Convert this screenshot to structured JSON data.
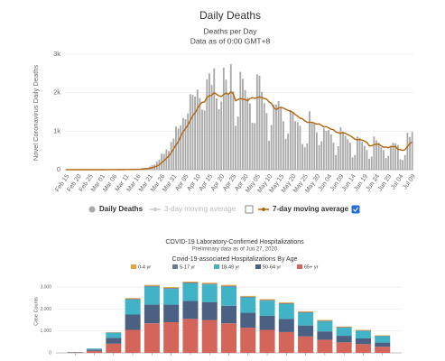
{
  "chart_data": [
    {
      "type": "bar",
      "title": "Daily Deaths",
      "subtitle": [
        "Deaths per Day",
        "Data as of 0:00 GMT+8"
      ],
      "y_label": "Novel Coronavirus Daily Deaths",
      "categories": [
        "Feb 15",
        null,
        null,
        null,
        null,
        "Feb 20",
        null,
        null,
        null,
        null,
        "Feb 25",
        null,
        null,
        null,
        null,
        "Mar 01",
        null,
        null,
        null,
        null,
        "Mar 06",
        null,
        null,
        null,
        null,
        "Mar 11",
        null,
        null,
        null,
        null,
        "Mar 16",
        null,
        null,
        null,
        null,
        "Mar 21",
        null,
        null,
        null,
        null,
        "Mar 26",
        null,
        null,
        null,
        null,
        "Mar 31",
        null,
        null,
        null,
        null,
        "Apr 05",
        null,
        null,
        null,
        null,
        "Apr 10",
        null,
        null,
        null,
        null,
        "Apr 15",
        null,
        null,
        null,
        null,
        "Apr 20",
        null,
        null,
        null,
        null,
        "Apr 25",
        null,
        null,
        null,
        null,
        "Apr 30",
        null,
        null,
        null,
        null,
        "May 05",
        null,
        null,
        null,
        null,
        "May 10",
        null,
        null,
        null,
        null,
        "May 15",
        null,
        null,
        null,
        null,
        "May 20",
        null,
        null,
        null,
        null,
        "May 25",
        null,
        null,
        null,
        null,
        "May 30",
        null,
        null,
        null,
        null,
        "Jun 04",
        null,
        null,
        null,
        null,
        "Jun 09",
        null,
        null,
        null,
        null,
        "Jun 14",
        null,
        null,
        null,
        null,
        "Jun 19",
        null,
        null,
        null,
        null,
        "Jun 24",
        null,
        null,
        null,
        null,
        "Jun 29",
        null,
        null,
        null,
        null,
        "Jul 04",
        null,
        null,
        null,
        null,
        "Jul 09"
      ],
      "series": [
        {
          "name": "Daily Deaths",
          "type": "bar",
          "color": "#a9a9a9",
          "values": [
            0,
            0,
            0,
            0,
            0,
            0,
            0,
            0,
            0,
            0,
            0,
            0,
            0,
            0,
            1,
            1,
            0,
            5,
            1,
            2,
            1,
            3,
            4,
            4,
            4,
            8,
            7,
            10,
            11,
            10,
            18,
            23,
            41,
            48,
            52,
            80,
            117,
            132,
            216,
            264,
            418,
            407,
            525,
            484,
            720,
            810,
            1120,
            1070,
            1150,
            1340,
            1310,
            1460,
            1960,
            1940,
            1900,
            2080,
            1860,
            1560,
            1540,
            2350,
            2500,
            2200,
            2630,
            1850,
            1570,
            1770,
            2650,
            2340,
            1960,
            2740,
            2040,
            1140,
            1380,
            2540,
            2360,
            2070,
            1870,
            1720,
            1220,
            1210,
            2480,
            2440,
            2020,
            1730,
            1470,
            750,
            1160,
            1690,
            1690,
            1780,
            1620,
            1260,
            800,
            940,
            1550,
            1500,
            1260,
            1230,
            1140,
            660,
            580,
            680,
            1520,
            1220,
            1210,
            970,
            640,
            740,
            1070,
            1010,
            1030,
            920,
            700,
            380,
            610,
            1100,
            950,
            880,
            790,
            700,
            320,
            380,
            860,
            830,
            720,
            620,
            510,
            280,
            340,
            860,
            760,
            700,
            580,
            510,
            300,
            360,
            620,
            700,
            680,
            640,
            270,
            250,
            380,
            960,
            850,
            980
          ]
        },
        {
          "name": "7-day moving average",
          "type": "line",
          "color": "#b5650d",
          "values": [
            0,
            0,
            0,
            0,
            0,
            0,
            0,
            0,
            0,
            0,
            0,
            0,
            0,
            0,
            0,
            0,
            0,
            1,
            1,
            2,
            2,
            2,
            3,
            3,
            3,
            4,
            5,
            6,
            7,
            8,
            10,
            12,
            17,
            22,
            28,
            37,
            52,
            68,
            92,
            127,
            181,
            232,
            296,
            354,
            443,
            536,
            640,
            729,
            863,
            986,
            1066,
            1158,
            1283,
            1398,
            1476,
            1584,
            1690,
            1752,
            1758,
            1878,
            1920,
            1930,
            2000,
            1960,
            1918,
            1900,
            1950,
            1990,
            1960,
            2020,
            1970,
            1790,
            1820,
            1850,
            1830,
            1820,
            1790,
            1850,
            1870,
            1850,
            1870,
            1890,
            1870,
            1850,
            1830,
            1760,
            1720,
            1610,
            1560,
            1600,
            1620,
            1600,
            1570,
            1540,
            1520,
            1490,
            1430,
            1390,
            1340,
            1320,
            1270,
            1230,
            1230,
            1230,
            1210,
            1180,
            1190,
            1150,
            1110,
            1120,
            1080,
            1050,
            1040,
            980,
            960,
            940,
            970,
            940,
            910,
            880,
            840,
            790,
            780,
            780,
            770,
            740,
            710,
            620,
            620,
            650,
            660,
            660,
            620,
            580,
            590,
            570,
            600,
            600,
            600,
            530,
            520,
            500,
            520,
            600,
            680,
            720
          ]
        }
      ],
      "inactive_legend": [
        "3-day moving average"
      ],
      "ylim": [
        0,
        3000
      ],
      "yticks": [
        0,
        {
          "value": 1000,
          "label": "1k"
        },
        {
          "value": 2000,
          "label": "2k"
        },
        {
          "value": 3000,
          "label": "3k"
        }
      ],
      "grid": true
    },
    {
      "type": "stacked_bar",
      "title": "COVID-19 Laboratory-Confirmed Hospitalizations",
      "subtitle": [
        "Preliminary data as of Jun 27, 2020"
      ],
      "legend_title": "Covid-19-associated Hospitalizations By Age",
      "y_label": "Case Counts",
      "categories": [
        null,
        null,
        null,
        null,
        null,
        null,
        null,
        null,
        null,
        null,
        null,
        null,
        null,
        null,
        null,
        null,
        null
      ],
      "series": [
        {
          "name": "0-4 yr",
          "color": "#e6a23c",
          "values": [
            0,
            2,
            15,
            35,
            40,
            40,
            40,
            40,
            40,
            35,
            35,
            35,
            35,
            30,
            25,
            25,
            20
          ]
        },
        {
          "name": "5-17 yr",
          "color": "#6b7b8c",
          "values": [
            0,
            3,
            15,
            35,
            40,
            40,
            40,
            40,
            40,
            35,
            35,
            35,
            35,
            30,
            25,
            25,
            20
          ]
        },
        {
          "name": "18-49 yr",
          "color": "#40b4c6",
          "values": [
            10,
            45,
            230,
            680,
            820,
            720,
            800,
            800,
            870,
            700,
            680,
            680,
            580,
            460,
            370,
            340,
            290
          ]
        },
        {
          "name": "50-64 yr",
          "color": "#4a6183",
          "values": [
            10,
            60,
            270,
            700,
            850,
            800,
            820,
            820,
            800,
            680,
            650,
            600,
            500,
            380,
            300,
            260,
            190
          ]
        },
        {
          "name": "65+ yr",
          "color": "#d4655a",
          "values": [
            20,
            90,
            420,
            1050,
            1350,
            1400,
            1550,
            1500,
            1350,
            1150,
            1050,
            950,
            750,
            600,
            480,
            400,
            280
          ]
        }
      ],
      "ylim": [
        0,
        3500
      ],
      "yticks": [
        0,
        {
          "value": 1000,
          "label": "1,000"
        },
        {
          "value": 2000,
          "label": "2,000"
        },
        {
          "value": 3000,
          "label": "3,000"
        }
      ],
      "grid": true
    }
  ]
}
